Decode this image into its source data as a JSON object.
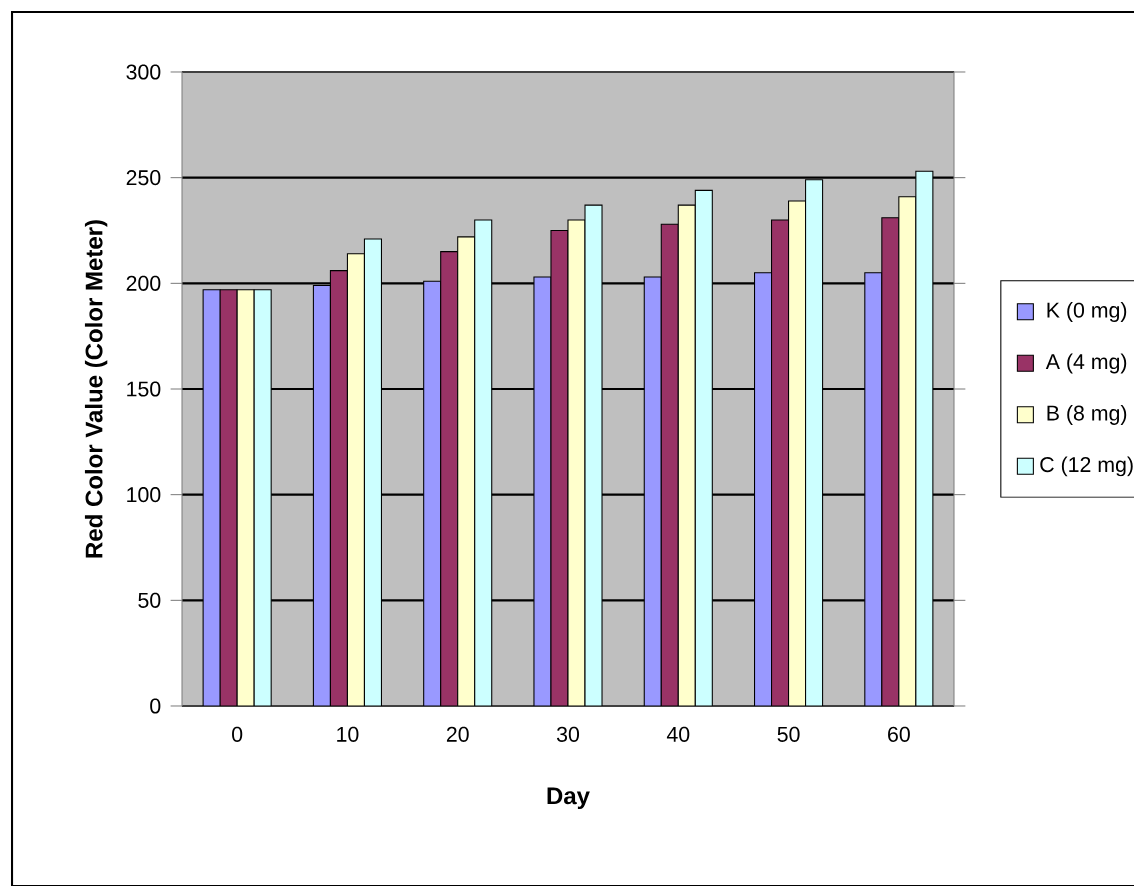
{
  "chart_data": {
    "type": "bar",
    "xlabel": "Day",
    "ylabel": "Red  Color  Value (Color  Meter)",
    "categories": [
      "0",
      "10",
      "20",
      "30",
      "40",
      "50",
      "60"
    ],
    "series": [
      {
        "name": "K (0 mg)",
        "color": "#9999ff",
        "values": [
          197,
          199,
          201,
          203,
          203,
          205,
          205
        ]
      },
      {
        "name": "A (4 mg)",
        "color": "#993366",
        "values": [
          197,
          206,
          215,
          225,
          228,
          230,
          231
        ]
      },
      {
        "name": "B (8 mg)",
        "color": "#ffffcc",
        "values": [
          197,
          214,
          222,
          230,
          237,
          239,
          241
        ]
      },
      {
        "name": "C (12 mg)",
        "color": "#ccffff",
        "values": [
          197,
          221,
          230,
          237,
          244,
          249,
          253
        ]
      }
    ],
    "ylim": [
      0,
      300
    ],
    "yticks": [
      0,
      50,
      100,
      150,
      200,
      250,
      300
    ],
    "grid": "y",
    "legend": "right"
  }
}
